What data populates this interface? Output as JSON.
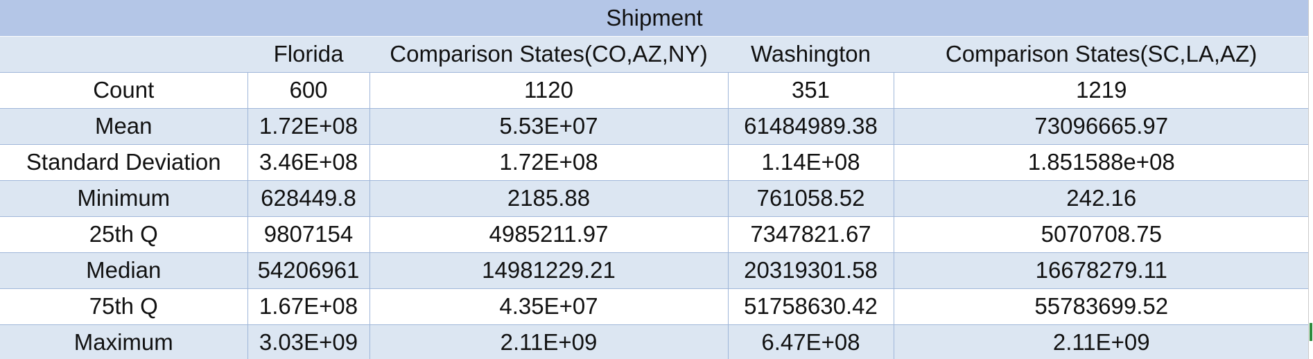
{
  "table": {
    "title": "Shipment",
    "columns": [
      "",
      "Florida",
      "Comparison States(CO,AZ,NY)",
      "Washington",
      "Comparison States(SC,LA,AZ)"
    ],
    "rows": [
      [
        "Count",
        "600",
        "1120",
        "351",
        "1219"
      ],
      [
        "Mean",
        "1.72E+08",
        "5.53E+07",
        "61484989.38",
        "73096665.97"
      ],
      [
        "Standard Deviation",
        "3.46E+08",
        "1.72E+08",
        "1.14E+08",
        "1.851588e+08"
      ],
      [
        "Minimum",
        "628449.8",
        "2185.88",
        "761058.52",
        "242.16"
      ],
      [
        "25th Q",
        "9807154",
        "4985211.97",
        "7347821.67",
        "5070708.75"
      ],
      [
        "Median",
        "54206961",
        "14981229.21",
        "20319301.58",
        "16678279.11"
      ],
      [
        "75th Q",
        "1.67E+08",
        "4.35E+07",
        "51758630.42",
        "55783699.52"
      ],
      [
        "Maximum",
        "3.03E+09",
        "2.11E+09",
        "6.47E+08",
        "2.11E+09"
      ]
    ]
  },
  "colors": {
    "title_fill": "#b4c6e7",
    "band_fill": "#dce6f2",
    "border": "#9fb6d9",
    "scroll_marker": "#2e8b3e"
  }
}
